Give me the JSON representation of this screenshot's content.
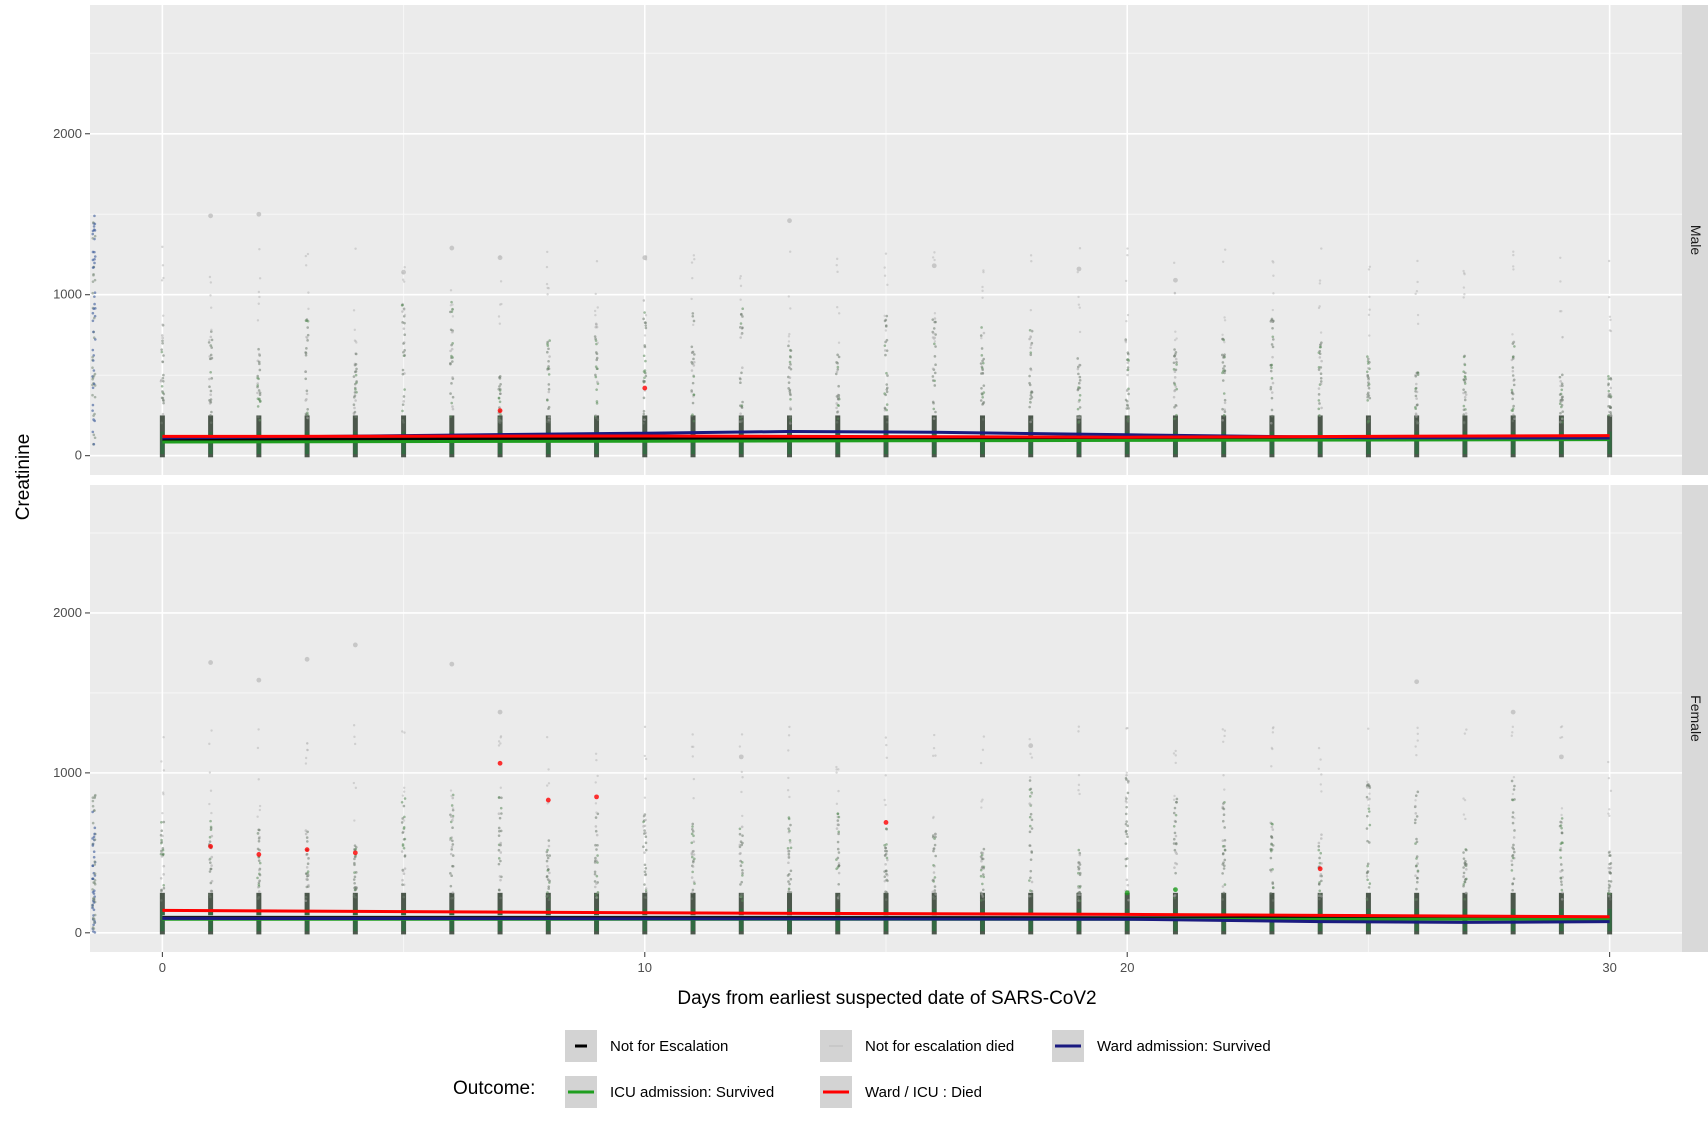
{
  "chart_data": {
    "type": "scatter",
    "xlabel": "Days from earliest suspected date of SARS-CoV2",
    "ylabel": "Creatinine",
    "xlim": [
      -1.5,
      31.5
    ],
    "ylim": [
      -120,
      2800
    ],
    "x_ticks": [
      0,
      10,
      20,
      30
    ],
    "y_ticks": [
      0,
      1000,
      2000
    ],
    "x_tick_labels": [
      "0",
      "10",
      "20",
      "30"
    ],
    "y_tick_labels": [
      "0",
      "1000",
      "2000"
    ],
    "grid": true,
    "legend": {
      "title": "Outcome:",
      "position": "bottom",
      "entries": [
        {
          "name": "Not for Escalation",
          "color": "#000000"
        },
        {
          "name": "Not for escalation died",
          "color": "#bebebe"
        },
        {
          "name": "Ward admission: Survived",
          "color": "#1a1a80"
        },
        {
          "name": "ICU admission: Survived",
          "color": "#1f9e1f"
        },
        {
          "name": "Ward / ICU : Died",
          "color": "#ff0000"
        }
      ]
    },
    "panels": [
      {
        "strip": "Male",
        "series": [
          {
            "name": "Ward admission: Survived",
            "x": [
              0,
              5,
              10,
              13,
              16,
              20,
              25,
              30
            ],
            "y": [
              110,
              125,
              140,
              150,
              145,
              130,
              112,
              110
            ]
          },
          {
            "name": "ICU admission: Survived",
            "x": [
              0,
              10,
              20,
              30
            ],
            "y": [
              85,
              90,
              95,
              100
            ]
          },
          {
            "name": "Ward / ICU : Died",
            "x": [
              0,
              10,
              20,
              30
            ],
            "y": [
              120,
              122,
              115,
              125
            ]
          },
          {
            "name": "Not for Escalation",
            "x": [
              0,
              15,
              30
            ],
            "y": [
              100,
              110,
              105
            ]
          },
          {
            "name": "Not for escalation died",
            "x": [
              0,
              15,
              30
            ],
            "y": [
              105,
              110,
              108
            ]
          }
        ]
      },
      {
        "strip": "Female",
        "series": [
          {
            "name": "Ward admission: Survived",
            "x": [
              0,
              10,
              20,
              24,
              27,
              30
            ],
            "y": [
              90,
              88,
              85,
              70,
              65,
              70
            ]
          },
          {
            "name": "ICU admission: Survived",
            "x": [
              0,
              10,
              20,
              30
            ],
            "y": [
              85,
              85,
              85,
              85
            ]
          },
          {
            "name": "Ward / ICU : Died",
            "x": [
              0,
              10,
              20,
              30
            ],
            "y": [
              140,
              125,
              115,
              100
            ]
          },
          {
            "name": "Not for Escalation",
            "x": [
              0,
              15,
              30
            ],
            "y": [
              95,
              95,
              90
            ]
          },
          {
            "name": "Not for escalation died",
            "x": [
              0,
              15,
              30
            ],
            "y": [
              100,
              100,
              95
            ]
          }
        ]
      }
    ],
    "outlier_points": [
      {
        "panel": 0,
        "x": 1,
        "y": 1490,
        "color": "#bebebe"
      },
      {
        "panel": 0,
        "x": 2,
        "y": 1500,
        "color": "#bebebe"
      },
      {
        "panel": 0,
        "x": 6,
        "y": 1290,
        "color": "#bebebe"
      },
      {
        "panel": 0,
        "x": 7,
        "y": 1230,
        "color": "#bebebe"
      },
      {
        "panel": 0,
        "x": 10,
        "y": 1230,
        "color": "#bebebe"
      },
      {
        "panel": 0,
        "x": 13,
        "y": 1460,
        "color": "#bebebe"
      },
      {
        "panel": 0,
        "x": 16,
        "y": 1180,
        "color": "#bebebe"
      },
      {
        "panel": 0,
        "x": 19,
        "y": 1160,
        "color": "#bebebe"
      },
      {
        "panel": 0,
        "x": 21,
        "y": 1090,
        "color": "#bebebe"
      },
      {
        "panel": 0,
        "x": 5,
        "y": 1140,
        "color": "#bebebe"
      },
      {
        "panel": 0,
        "x": 10,
        "y": 420,
        "color": "#ff0000"
      },
      {
        "panel": 0,
        "x": 7,
        "y": 280,
        "color": "#ff0000"
      },
      {
        "panel": 1,
        "x": 4,
        "y": 1800,
        "color": "#bebebe"
      },
      {
        "panel": 1,
        "x": 3,
        "y": 1710,
        "color": "#bebebe"
      },
      {
        "panel": 1,
        "x": 6,
        "y": 1680,
        "color": "#bebebe"
      },
      {
        "panel": 1,
        "x": 1,
        "y": 1690,
        "color": "#bebebe"
      },
      {
        "panel": 1,
        "x": 2,
        "y": 1580,
        "color": "#bebebe"
      },
      {
        "panel": 1,
        "x": 26,
        "y": 1570,
        "color": "#bebebe"
      },
      {
        "panel": 1,
        "x": 7,
        "y": 1380,
        "color": "#bebebe"
      },
      {
        "panel": 1,
        "x": 28,
        "y": 1380,
        "color": "#bebebe"
      },
      {
        "panel": 1,
        "x": 18,
        "y": 1170,
        "color": "#bebebe"
      },
      {
        "panel": 1,
        "x": 12,
        "y": 1100,
        "color": "#bebebe"
      },
      {
        "panel": 1,
        "x": 29,
        "y": 1100,
        "color": "#bebebe"
      },
      {
        "panel": 1,
        "x": 7,
        "y": 1060,
        "color": "#ff0000"
      },
      {
        "panel": 1,
        "x": 8,
        "y": 830,
        "color": "#ff0000"
      },
      {
        "panel": 1,
        "x": 9,
        "y": 850,
        "color": "#ff0000"
      },
      {
        "panel": 1,
        "x": 15,
        "y": 690,
        "color": "#ff0000"
      },
      {
        "panel": 1,
        "x": 1,
        "y": 540,
        "color": "#ff0000"
      },
      {
        "panel": 1,
        "x": 2,
        "y": 490,
        "color": "#ff0000"
      },
      {
        "panel": 1,
        "x": 3,
        "y": 520,
        "color": "#ff0000"
      },
      {
        "panel": 1,
        "x": 4,
        "y": 500,
        "color": "#ff0000"
      },
      {
        "panel": 1,
        "x": 24,
        "y": 400,
        "color": "#ff0000"
      },
      {
        "panel": 1,
        "x": 20,
        "y": 250,
        "color": "#1f9e1f"
      },
      {
        "panel": 1,
        "x": 21,
        "y": 270,
        "color": "#1f9e1f"
      }
    ]
  }
}
